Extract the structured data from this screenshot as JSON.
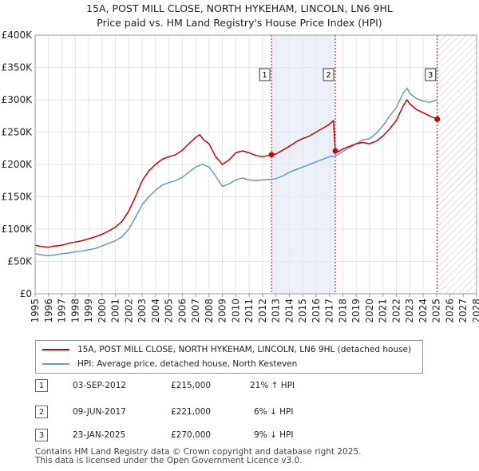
{
  "title_line1": "15A, POST MILL CLOSE, NORTH HYKEHAM, LINCOLN, LN6 9HL",
  "title_line2": "Price paid vs. HM Land Registry's House Price Index (HPI)",
  "colors": {
    "property": "#cc0000",
    "hpi": "#6699cc",
    "marker_line": "#cc0000",
    "highlight": "#dde6f5"
  },
  "chart_data": {
    "type": "line",
    "xlim": [
      1995,
      2028
    ],
    "ylim": [
      0,
      400000
    ],
    "y_ticks": [
      {
        "value": 0,
        "label": "£0"
      },
      {
        "value": 50000,
        "label": "£50K"
      },
      {
        "value": 100000,
        "label": "£100K"
      },
      {
        "value": 150000,
        "label": "£150K"
      },
      {
        "value": 200000,
        "label": "£200K"
      },
      {
        "value": 250000,
        "label": "£250K"
      },
      {
        "value": 300000,
        "label": "£300K"
      },
      {
        "value": 350000,
        "label": "£350K"
      },
      {
        "value": 400000,
        "label": "£400K"
      }
    ],
    "x_ticks": [
      "1995",
      "1996",
      "1997",
      "1998",
      "1999",
      "2000",
      "2001",
      "2002",
      "2003",
      "2004",
      "2005",
      "2006",
      "2007",
      "2008",
      "2009",
      "2010",
      "2011",
      "2012",
      "2013",
      "2014",
      "2015",
      "2016",
      "2017",
      "2018",
      "2019",
      "2020",
      "2021",
      "2022",
      "2023",
      "2024",
      "2025",
      "2026",
      "2027",
      "2028"
    ],
    "highlight_period": [
      2012.67,
      2017.44
    ],
    "forecast_from": 2025.06,
    "series": [
      {
        "name": "15A, POST MILL CLOSE, NORTH HYKEHAM, LINCOLN, LN6 9HL (detached house)",
        "color": "#cc0000",
        "points": [
          [
            1995,
            75000
          ],
          [
            1995.5,
            73000
          ],
          [
            1996,
            72000
          ],
          [
            1996.5,
            74000
          ],
          [
            1997,
            75000
          ],
          [
            1997.5,
            78000
          ],
          [
            1998,
            80000
          ],
          [
            1998.5,
            82000
          ],
          [
            1999,
            85000
          ],
          [
            1999.5,
            88000
          ],
          [
            2000,
            92000
          ],
          [
            2000.5,
            97000
          ],
          [
            2001,
            103000
          ],
          [
            2001.5,
            112000
          ],
          [
            2002,
            128000
          ],
          [
            2002.5,
            150000
          ],
          [
            2003,
            175000
          ],
          [
            2003.5,
            190000
          ],
          [
            2004,
            200000
          ],
          [
            2004.5,
            208000
          ],
          [
            2005,
            212000
          ],
          [
            2005.5,
            215000
          ],
          [
            2006,
            222000
          ],
          [
            2006.5,
            232000
          ],
          [
            2007,
            242000
          ],
          [
            2007.3,
            246000
          ],
          [
            2007.6,
            238000
          ],
          [
            2008,
            232000
          ],
          [
            2008.5,
            212000
          ],
          [
            2009,
            200000
          ],
          [
            2009.5,
            207000
          ],
          [
            2010,
            218000
          ],
          [
            2010.5,
            221000
          ],
          [
            2011,
            218000
          ],
          [
            2011.5,
            214000
          ],
          [
            2012,
            212000
          ],
          [
            2012.67,
            215000
          ],
          [
            2013,
            216000
          ],
          [
            2013.5,
            222000
          ],
          [
            2014,
            228000
          ],
          [
            2014.5,
            235000
          ],
          [
            2015,
            240000
          ],
          [
            2015.5,
            244000
          ],
          [
            2016,
            250000
          ],
          [
            2016.5,
            256000
          ],
          [
            2017,
            262000
          ],
          [
            2017.3,
            268000
          ],
          [
            2017.44,
            221000
          ],
          [
            2017.7,
            220000
          ],
          [
            2018,
            224000
          ],
          [
            2018.5,
            228000
          ],
          [
            2019,
            232000
          ],
          [
            2019.5,
            234000
          ],
          [
            2020,
            232000
          ],
          [
            2020.5,
            236000
          ],
          [
            2021,
            244000
          ],
          [
            2021.5,
            255000
          ],
          [
            2022,
            268000
          ],
          [
            2022.5,
            290000
          ],
          [
            2022.8,
            300000
          ],
          [
            2023,
            294000
          ],
          [
            2023.5,
            285000
          ],
          [
            2024,
            280000
          ],
          [
            2024.5,
            275000
          ],
          [
            2025.06,
            270000
          ]
        ]
      },
      {
        "name": "HPI: Average price, detached house, North Kesteven",
        "color": "#6699cc",
        "points": [
          [
            1995,
            62000
          ],
          [
            1995.5,
            60000
          ],
          [
            1996,
            59000
          ],
          [
            1996.5,
            60000
          ],
          [
            1997,
            62000
          ],
          [
            1997.5,
            63000
          ],
          [
            1998,
            65000
          ],
          [
            1998.5,
            66000
          ],
          [
            1999,
            68000
          ],
          [
            1999.5,
            70000
          ],
          [
            2000,
            74000
          ],
          [
            2000.5,
            78000
          ],
          [
            2001,
            82000
          ],
          [
            2001.5,
            88000
          ],
          [
            2002,
            100000
          ],
          [
            2002.5,
            118000
          ],
          [
            2003,
            138000
          ],
          [
            2003.5,
            150000
          ],
          [
            2004,
            160000
          ],
          [
            2004.5,
            168000
          ],
          [
            2005,
            172000
          ],
          [
            2005.5,
            175000
          ],
          [
            2006,
            180000
          ],
          [
            2006.5,
            188000
          ],
          [
            2007,
            196000
          ],
          [
            2007.5,
            200000
          ],
          [
            2008,
            196000
          ],
          [
            2008.5,
            182000
          ],
          [
            2009,
            166000
          ],
          [
            2009.5,
            170000
          ],
          [
            2010,
            176000
          ],
          [
            2010.5,
            179000
          ],
          [
            2011,
            176000
          ],
          [
            2011.5,
            175000
          ],
          [
            2012,
            176000
          ],
          [
            2012.67,
            177000
          ],
          [
            2013,
            178000
          ],
          [
            2013.5,
            182000
          ],
          [
            2014,
            188000
          ],
          [
            2014.5,
            192000
          ],
          [
            2015,
            196000
          ],
          [
            2015.5,
            200000
          ],
          [
            2016,
            204000
          ],
          [
            2016.5,
            208000
          ],
          [
            2017,
            212000
          ],
          [
            2017.44,
            213000
          ],
          [
            2017.7,
            216000
          ],
          [
            2018,
            220000
          ],
          [
            2018.5,
            226000
          ],
          [
            2019,
            232000
          ],
          [
            2019.5,
            238000
          ],
          [
            2020,
            240000
          ],
          [
            2020.5,
            248000
          ],
          [
            2021,
            260000
          ],
          [
            2021.5,
            275000
          ],
          [
            2022,
            288000
          ],
          [
            2022.5,
            310000
          ],
          [
            2022.8,
            318000
          ],
          [
            2023,
            310000
          ],
          [
            2023.5,
            302000
          ],
          [
            2024,
            298000
          ],
          [
            2024.5,
            296000
          ],
          [
            2025.06,
            300000
          ]
        ]
      }
    ],
    "markers": [
      {
        "label": "1",
        "x": 2012.67,
        "y": 215000
      },
      {
        "label": "2",
        "x": 2017.44,
        "y": 221000
      },
      {
        "label": "3",
        "x": 2025.06,
        "y": 270000
      }
    ]
  },
  "legend": {
    "property": "15A, POST MILL CLOSE, NORTH HYKEHAM, LINCOLN, LN6 9HL (detached house)",
    "hpi": "HPI: Average price, detached house, North Kesteven"
  },
  "transactions": [
    {
      "num": "1",
      "date": "03-SEP-2012",
      "price": "£215,000",
      "hpi": "21% ↑ HPI"
    },
    {
      "num": "2",
      "date": "09-JUN-2017",
      "price": "£221,000",
      "hpi": "6% ↓ HPI"
    },
    {
      "num": "3",
      "date": "23-JAN-2025",
      "price": "£270,000",
      "hpi": "9% ↓ HPI"
    }
  ],
  "footer": {
    "line1": "Contains HM Land Registry data © Crown copyright and database right 2025.",
    "line2": "This data is licensed under the Open Government Licence v3.0."
  }
}
